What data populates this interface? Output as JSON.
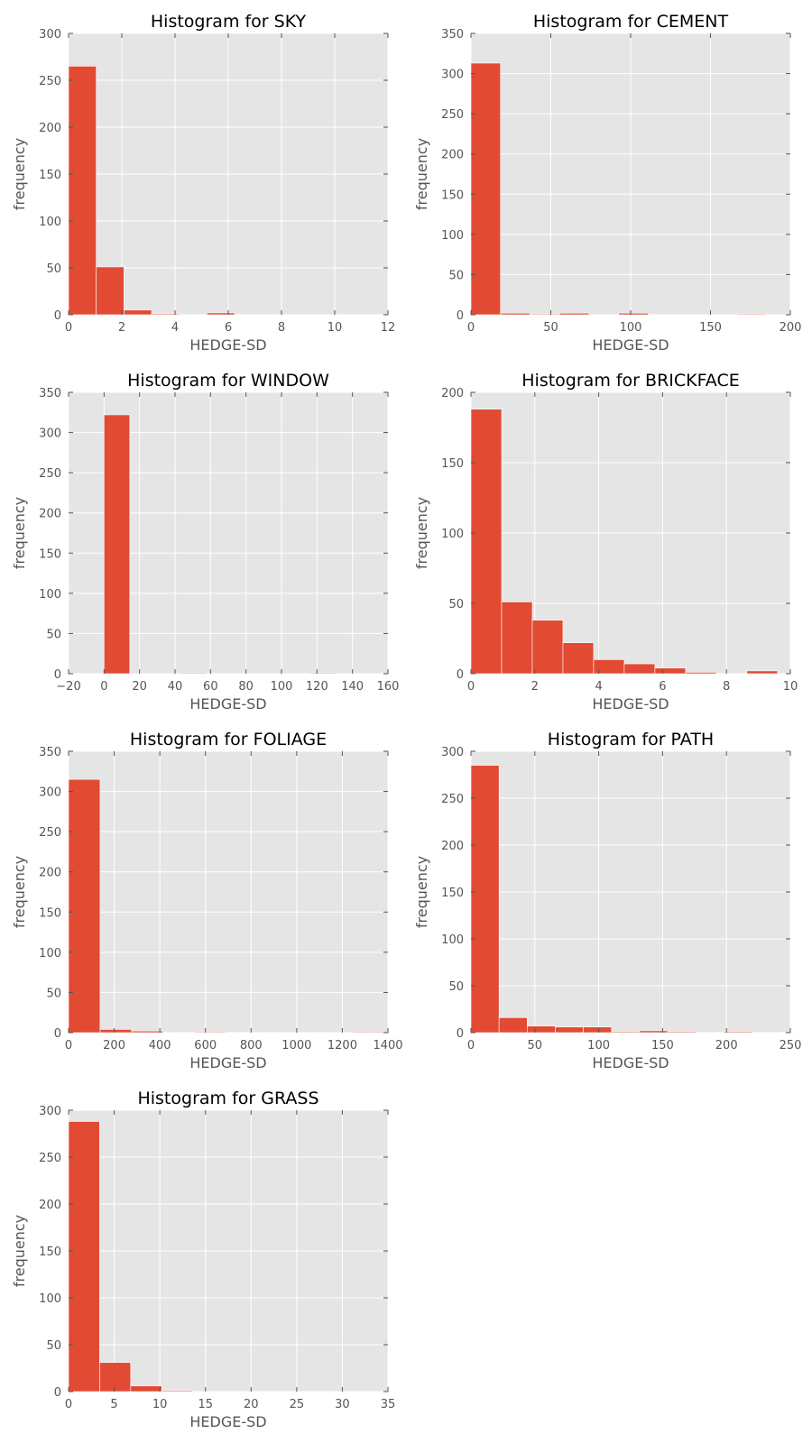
{
  "chart_data": [
    {
      "type": "bar",
      "title": "Histogram for SKY",
      "xlabel": "HEDGE-SD",
      "ylabel": "frequency",
      "xlim": [
        0,
        12
      ],
      "ylim": [
        0,
        300
      ],
      "xticks": [
        0,
        2,
        4,
        6,
        8,
        10,
        12
      ],
      "yticks": [
        0,
        50,
        100,
        150,
        200,
        250,
        300
      ],
      "bin_edges": [
        0,
        1.04,
        2.08,
        3.12,
        4.16,
        5.2,
        6.24,
        7.28,
        8.32,
        9.36,
        10.4
      ],
      "values": [
        265,
        51,
        5,
        1,
        0,
        2,
        0,
        0,
        0,
        0
      ],
      "grid": true
    },
    {
      "type": "bar",
      "title": "Histogram for CEMENT",
      "xlabel": "HEDGE-SD",
      "ylabel": "frequency",
      "xlim": [
        0,
        200
      ],
      "ylim": [
        0,
        350
      ],
      "xticks": [
        0,
        50,
        100,
        150,
        200
      ],
      "yticks": [
        0,
        50,
        100,
        150,
        200,
        250,
        300,
        350
      ],
      "bin_edges": [
        0,
        18.5,
        37,
        55.5,
        74,
        92.5,
        111,
        129.5,
        148,
        166.5,
        185
      ],
      "values": [
        313,
        2,
        1,
        2,
        0,
        2,
        0,
        0,
        0,
        1
      ],
      "grid": true
    },
    {
      "type": "bar",
      "title": "Histogram for WINDOW",
      "xlabel": "HEDGE-SD",
      "ylabel": "frequency",
      "xlim": [
        -20,
        160
      ],
      "ylim": [
        0,
        350
      ],
      "xticks": [
        -20,
        0,
        20,
        40,
        60,
        80,
        100,
        120,
        140,
        160
      ],
      "xtick_labels": [
        "−20",
        "0",
        "20",
        "40",
        "60",
        "80",
        "100",
        "120",
        "140",
        "160"
      ],
      "yticks": [
        0,
        50,
        100,
        150,
        200,
        250,
        300,
        350
      ],
      "bin_edges": [
        0,
        14.5,
        29,
        43.5,
        58,
        72.5,
        87,
        101.5,
        116,
        130.5,
        145
      ],
      "values": [
        322,
        0,
        0,
        1,
        0,
        0,
        0,
        0,
        1,
        0
      ],
      "grid": true
    },
    {
      "type": "bar",
      "title": "Histogram for BRICKFACE",
      "xlabel": "HEDGE-SD",
      "ylabel": "frequency",
      "xlim": [
        0,
        10
      ],
      "ylim": [
        0,
        200
      ],
      "xticks": [
        0,
        2,
        4,
        6,
        8,
        10
      ],
      "yticks": [
        0,
        50,
        100,
        150,
        200
      ],
      "bin_edges": [
        0,
        0.96,
        1.92,
        2.88,
        3.84,
        4.8,
        5.76,
        6.72,
        7.68,
        8.64,
        9.6
      ],
      "values": [
        188,
        51,
        38,
        22,
        10,
        7,
        4,
        1,
        0,
        2
      ],
      "grid": true
    },
    {
      "type": "bar",
      "title": "Histogram for FOLIAGE",
      "xlabel": "HEDGE-SD",
      "ylabel": "frequency",
      "xlim": [
        0,
        1400
      ],
      "ylim": [
        0,
        350
      ],
      "xticks": [
        0,
        200,
        400,
        600,
        800,
        1000,
        1200,
        1400
      ],
      "yticks": [
        0,
        50,
        100,
        150,
        200,
        250,
        300,
        350
      ],
      "bin_edges": [
        0,
        138,
        276,
        414,
        552,
        690,
        828,
        966,
        1104,
        1242,
        1380
      ],
      "values": [
        315,
        4,
        2,
        0,
        1,
        0,
        0,
        0,
        0,
        1
      ],
      "grid": true
    },
    {
      "type": "bar",
      "title": "Histogram for PATH",
      "xlabel": "HEDGE-SD",
      "ylabel": "frequency",
      "xlim": [
        0,
        250
      ],
      "ylim": [
        0,
        300
      ],
      "xticks": [
        0,
        50,
        100,
        150,
        200,
        250
      ],
      "yticks": [
        0,
        50,
        100,
        150,
        200,
        250,
        300
      ],
      "bin_edges": [
        0,
        22,
        44,
        66,
        88,
        110,
        132,
        154,
        176,
        198,
        220
      ],
      "values": [
        285,
        16,
        7,
        6,
        6,
        1,
        2,
        1,
        0,
        1
      ],
      "grid": true
    },
    {
      "type": "bar",
      "title": "Histogram for GRASS",
      "xlabel": "HEDGE-SD",
      "ylabel": "frequency",
      "xlim": [
        0,
        35
      ],
      "ylim": [
        0,
        300
      ],
      "xticks": [
        0,
        5,
        10,
        15,
        20,
        25,
        30,
        35
      ],
      "yticks": [
        0,
        50,
        100,
        150,
        200,
        250,
        300
      ],
      "bin_edges": [
        0,
        3.4,
        6.8,
        10.2,
        13.6,
        17,
        20.4,
        23.8,
        27.2,
        30.6,
        34
      ],
      "values": [
        288,
        31,
        6,
        1,
        0,
        0,
        0,
        0,
        0,
        0
      ],
      "grid": true
    }
  ],
  "colors": {
    "bar": "#e24a33",
    "plot_bg": "#e5e5e5",
    "grid": "#ffffff",
    "tick_text": "#555555",
    "title_text": "#000000"
  }
}
